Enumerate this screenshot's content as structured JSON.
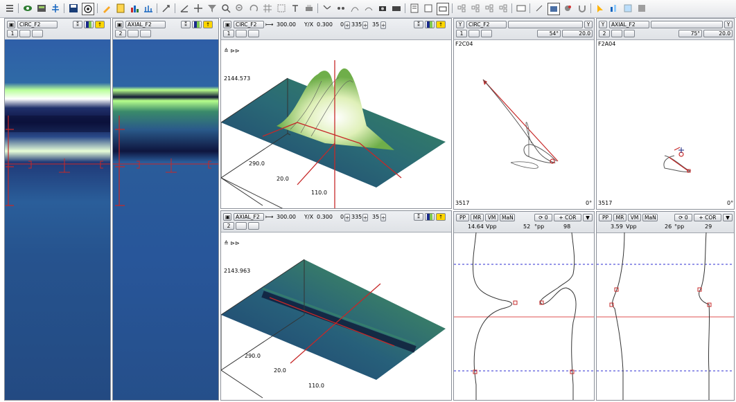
{
  "colors": {
    "accent_red": "#c62828",
    "trace_gray": "#555555",
    "dashed_blue": "#2b2bd0",
    "cscan_blue": "#1f4e8c"
  },
  "toolbar": {
    "icons": [
      "list-icon",
      "eye-icon",
      "gauge-icon",
      "tree-icon",
      "save-icon",
      "target-icon",
      "pen-icon",
      "page-icon",
      "chart-icon",
      "scale-icon",
      "cursor-icon",
      "angle-icon",
      "move-icon",
      "filter-icon",
      "zoom-icon",
      "zoom-out-icon",
      "rotate-icon",
      "grid-icon",
      "select-icon",
      "text-icon",
      "print-icon",
      "window-icon",
      "link-icon",
      "camera-icon",
      "doc-icon",
      "layout-icon",
      "compare-icon",
      "compare2-icon",
      "compare3-icon",
      "frame-icon",
      "snap-icon",
      "screen-icon",
      "search-icon",
      "search-next-icon",
      "pointer-icon",
      "table-icon",
      "chart2-icon",
      "panel-icon"
    ]
  },
  "cscan_circ": {
    "channel": "CIRC_F2",
    "slot": "1"
  },
  "cscan_axial": {
    "channel": "AXIAL_F2",
    "slot": "2"
  },
  "iso_top": {
    "channel": "CIRC_F2",
    "slot": "1",
    "range": "300.00",
    "yx_label": "Y/X",
    "yx": "0.300",
    "rot1_prefix": "0",
    "rot1": "335",
    "rot2": "35",
    "value": "2144.573",
    "ticks": [
      "290.0",
      "20.0",
      "110.0"
    ]
  },
  "iso_bottom": {
    "channel": "AXIAL_F2",
    "slot": "2",
    "range": "300.00",
    "yx_label": "Y/X",
    "yx": "0.300",
    "rot1_prefix": "0",
    "rot1": "335",
    "rot2": "35",
    "value": "2143.963",
    "ticks": [
      "290.0",
      "20.0",
      "110.0"
    ]
  },
  "lissa_circ": {
    "y_btn": "Y",
    "channel": "CIRC_F2",
    "slot": "1",
    "angle": "54°",
    "span": "20.0",
    "label": "F2C04",
    "index": "3517",
    "zero": "0°"
  },
  "lissa_axial": {
    "y_btn": "Y",
    "channel": "AXIAL_F2",
    "slot": "2",
    "angle": "75°",
    "span": "20.0",
    "label": "F2A04",
    "index": "3517",
    "zero": "0°"
  },
  "meas_circ": {
    "buttons": [
      "PP",
      "MR",
      "VM",
      "MaN"
    ],
    "rot": "⟳ 0",
    "cor": "+ COR",
    "vpp": "14.64",
    "vpp_unit": "Vpp",
    "deg": "52",
    "deg_unit": "°pp",
    "extra": "98"
  },
  "meas_axial": {
    "buttons": [
      "PP",
      "MR",
      "VM",
      "MaN"
    ],
    "rot": "⟳ 0",
    "cor": "+ COR",
    "vpp": "3.59",
    "vpp_unit": "Vpp",
    "deg": "26",
    "deg_unit": "°pp",
    "extra": "29"
  }
}
